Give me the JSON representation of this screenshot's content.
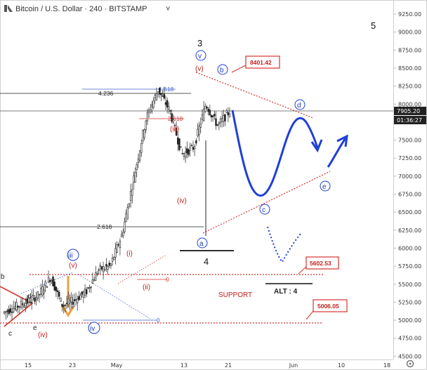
{
  "header": {
    "title": "Bitcoin / U.S. Dollar · 240 · BITSTAMP",
    "chevron": "˅",
    "logo_icon": "tradingview-logo-icon"
  },
  "colors": {
    "candle": "#222222",
    "red": "#d4332e",
    "blue": "#1f3fd6",
    "fib_blue": "#3c5fd0",
    "fib_black": "#222222",
    "price_tag_bg": "#222222"
  },
  "chart_data": {
    "type": "candlestick",
    "title": "Bitcoin / U.S. Dollar · 240 · BITSTAMP",
    "ylim": [
      4400,
      9400
    ],
    "y_ticks": [
      "9250.00",
      "9000.00",
      "8750.00",
      "8500.00",
      "8250.00",
      "8000.00",
      "7750.00",
      "7500.00",
      "7250.00",
      "7000.00",
      "6750.00",
      "6500.00",
      "6250.00",
      "6000.00",
      "5750.00",
      "5500.00",
      "5250.00",
      "5000.00",
      "4750.00",
      "4500.00"
    ],
    "x_ticks": [
      "15",
      "23",
      "May",
      "13",
      "21",
      "Jun",
      "10",
      "18"
    ],
    "current_price": {
      "label": "7905.20",
      "value": 7905.2,
      "countdown": "01:36:27"
    },
    "series": [
      {
        "name": "",
        "x": [
          "2019-04-12",
          "2019-04-15",
          "2019-04-18",
          "2019-04-21",
          "2019-04-23",
          "2019-04-25",
          "2019-04-27",
          "2019-04-30",
          "2019-05-03",
          "2019-05-06",
          "2019-05-09",
          "2019-05-11",
          "2019-05-13",
          "2019-05-14",
          "2019-05-16",
          "2019-05-17",
          "2019-05-18",
          "2019-05-20",
          "2019-05-21",
          "2019-05-23"
        ],
        "close": [
          5100,
          5180,
          5250,
          5350,
          5600,
          5200,
          5280,
          5400,
          5700,
          5750,
          6200,
          7000,
          7800,
          8200,
          7900,
          7300,
          7400,
          8000,
          7700,
          7900
        ]
      }
    ],
    "forecast_path": [
      {
        "x": "2019-05-23",
        "y": 7950
      },
      {
        "x": "2019-05-29",
        "y": 6750
      },
      {
        "x": "2019-06-06",
        "y": 7900
      },
      {
        "x": "2019-06-09",
        "y": 7400
      },
      {
        "x": "2019-06-13",
        "y": 7550
      }
    ],
    "alt_path": [
      {
        "x": "2019-05-28",
        "y": 6250
      },
      {
        "x": "2019-06-01",
        "y": 5700
      },
      {
        "x": "2019-06-05",
        "y": 6200
      }
    ],
    "price_boxes": [
      {
        "label": "8401.42",
        "value": 8401.42
      },
      {
        "label": "5602.53",
        "value": 5602.53
      },
      {
        "label": "5006.05",
        "value": 5006.05
      }
    ],
    "fib_levels": [
      {
        "label": "4.236",
        "ratio": "1.618",
        "value": 8300
      },
      {
        "label": "2.618",
        "ratio": "2.618",
        "value": 6250
      },
      {
        "label": "",
        "ratio": "2.618",
        "value": 7850
      },
      {
        "label": "",
        "ratio": "0",
        "value": 5580
      },
      {
        "label": "",
        "ratio": "0",
        "value": 5000
      }
    ],
    "wave_labels": {
      "major": [
        "3",
        "4",
        "5"
      ],
      "red": [
        "(v)",
        "(iii)",
        "(iv)",
        "(i)",
        "(ii)",
        "(iv)",
        "(v)"
      ],
      "circled_blue": [
        "v",
        "b",
        "d",
        "a",
        "c",
        "e",
        "iii",
        "iv"
      ],
      "black_small": [
        "d",
        "c",
        "b",
        "e"
      ]
    },
    "annotations": {
      "support": "SUPPORT",
      "alt": "ALT : 4"
    }
  }
}
